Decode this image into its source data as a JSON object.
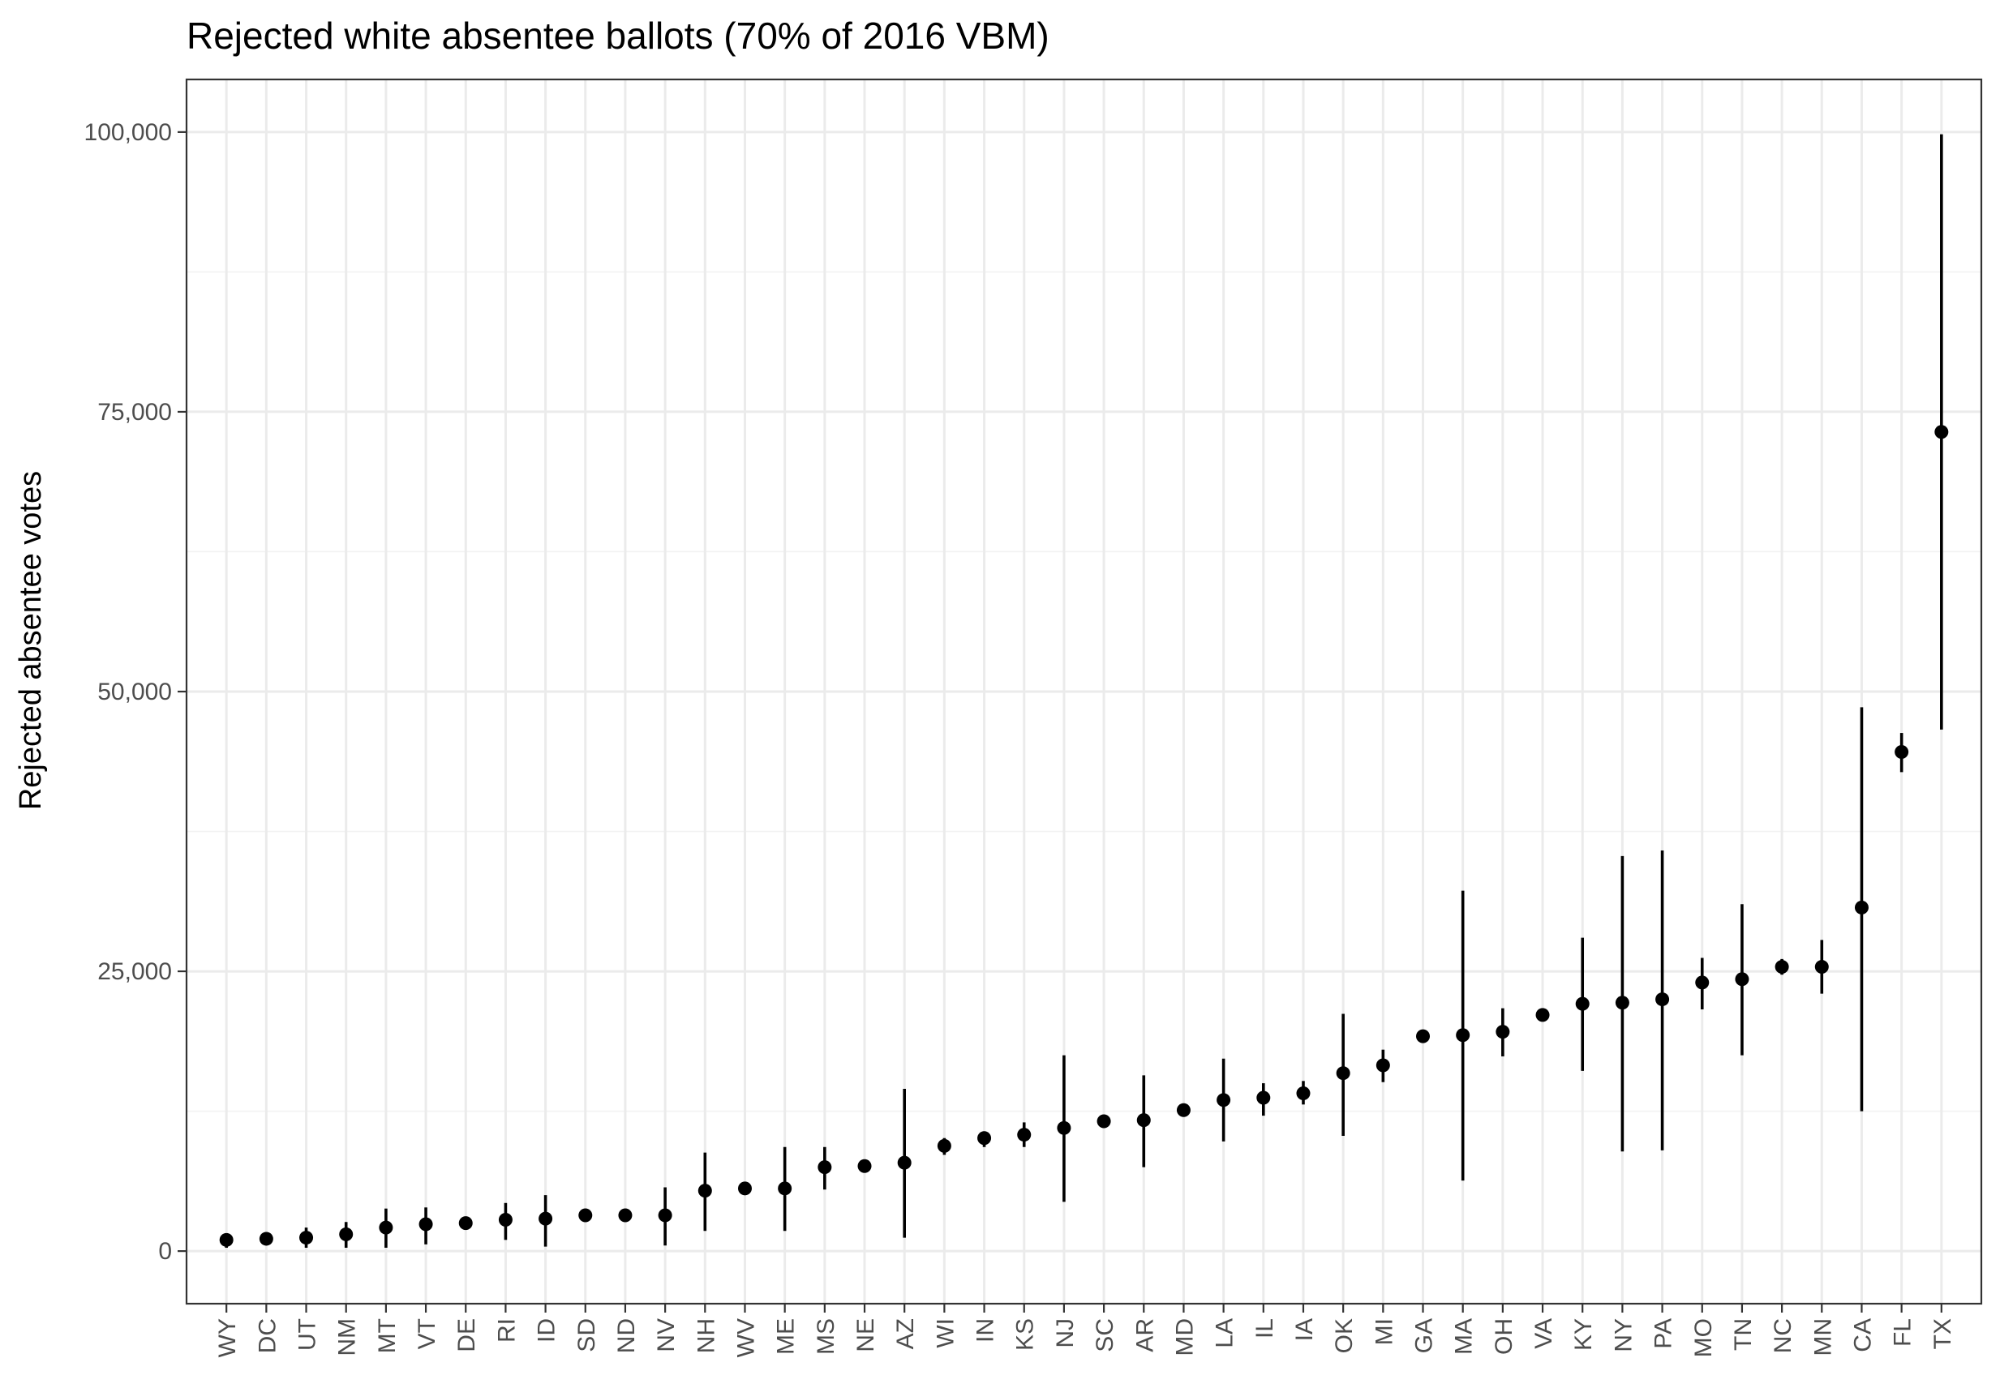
{
  "chart_data": {
    "type": "scatter",
    "title": "Rejected white absentee ballots (70% of 2016 VBM)",
    "xlabel": "",
    "ylabel": "Rejected absentee votes",
    "ylim": [
      -4700,
      104700
    ],
    "y_ticks": [
      0,
      25000,
      50000,
      75000,
      100000
    ],
    "y_tick_labels": [
      "0",
      "25,000",
      "50,000",
      "75,000",
      "100,000"
    ],
    "grid": true,
    "legend": "none",
    "point_color": "#000000",
    "categories": [
      "WY",
      "DC",
      "UT",
      "NM",
      "MT",
      "VT",
      "DE",
      "RI",
      "ID",
      "SD",
      "ND",
      "NV",
      "NH",
      "WV",
      "ME",
      "MS",
      "NE",
      "AZ",
      "WI",
      "IN",
      "KS",
      "NJ",
      "SC",
      "AR",
      "MD",
      "LA",
      "IL",
      "IA",
      "OK",
      "MI",
      "GA",
      "MA",
      "OH",
      "VA",
      "KY",
      "NY",
      "PA",
      "MO",
      "TN",
      "NC",
      "MN",
      "CA",
      "FL",
      "TX"
    ],
    "values": [
      1000,
      1100,
      1200,
      1500,
      2100,
      2400,
      2500,
      2800,
      2900,
      3200,
      3200,
      3200,
      5400,
      5600,
      5600,
      7500,
      7600,
      7900,
      9400,
      10100,
      10400,
      11000,
      11600,
      11700,
      12600,
      13500,
      13700,
      14100,
      15900,
      16600,
      19200,
      19300,
      19600,
      21100,
      22100,
      22200,
      22500,
      24000,
      24300,
      25400,
      25400,
      30700,
      44600,
      73200
    ],
    "lower": [
      300,
      900,
      300,
      300,
      300,
      600,
      2300,
      1000,
      400,
      3000,
      3000,
      500,
      1800,
      5400,
      1800,
      5500,
      7300,
      1200,
      8600,
      9300,
      9300,
      4400,
      11400,
      7500,
      12300,
      9800,
      12100,
      13100,
      10300,
      15100,
      19000,
      6300,
      17400,
      20600,
      16100,
      8900,
      9000,
      21600,
      17500,
      24700,
      23000,
      12500,
      42800,
      46600
    ],
    "upper": [
      1600,
      1300,
      2100,
      2600,
      3800,
      3900,
      2700,
      4300,
      5000,
      3400,
      3400,
      5700,
      8800,
      5800,
      9300,
      9300,
      7900,
      14500,
      10100,
      10700,
      11500,
      17500,
      11800,
      15700,
      12900,
      17200,
      15000,
      15200,
      21200,
      18000,
      19400,
      32200,
      21700,
      21600,
      28000,
      35300,
      35800,
      26200,
      31000,
      26100,
      27800,
      48600,
      46300,
      99800
    ]
  }
}
